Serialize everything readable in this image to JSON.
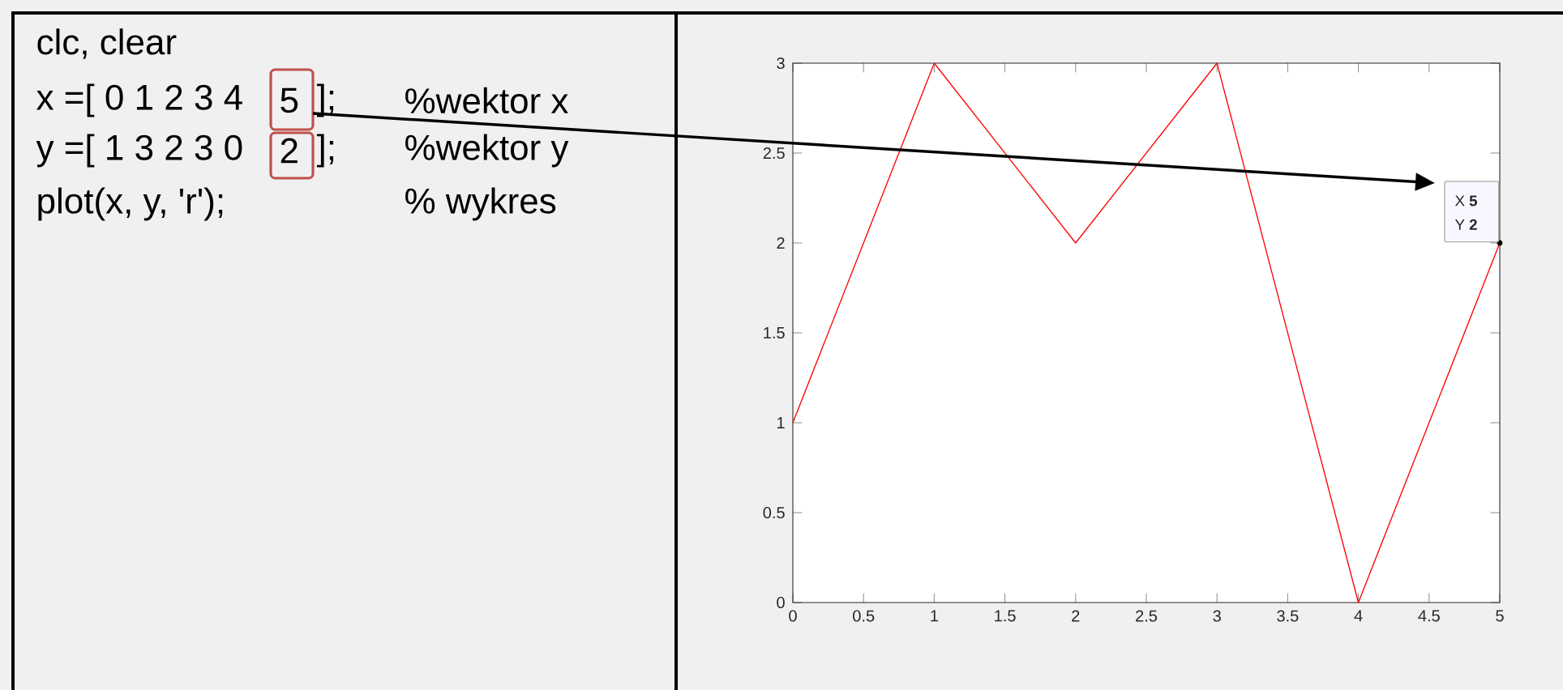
{
  "chart_data": [
    {
      "type": "other",
      "annotations": [
        "clc, clear",
        "x =[ 0 1 2 3 4",
        "5",
        "];",
        "%wektor x",
        "y =[ 1 3 2 3 0",
        "2",
        "];",
        "%wektor y",
        "plot(x, y, 'r');",
        "% wykres"
      ]
    },
    {
      "type": "line",
      "x": [
        0,
        1,
        2,
        3,
        4,
        5
      ],
      "values": [
        1,
        3,
        2,
        3,
        0,
        2
      ],
      "color": "#ff0000",
      "xlim": [
        0,
        5
      ],
      "ylim": [
        0,
        3
      ],
      "xticks": [
        0,
        0.5,
        1,
        1.5,
        2,
        2.5,
        3,
        3.5,
        4,
        4.5,
        5
      ],
      "yticks": [
        0,
        0.5,
        1,
        1.5,
        2,
        2.5,
        3
      ],
      "annotations": [
        {
          "text": "X **5**",
          "x": 5,
          "y": 2
        },
        {
          "text": "Y **2**",
          "x": 5,
          "y": 2
        }
      ]
    }
  ]
}
